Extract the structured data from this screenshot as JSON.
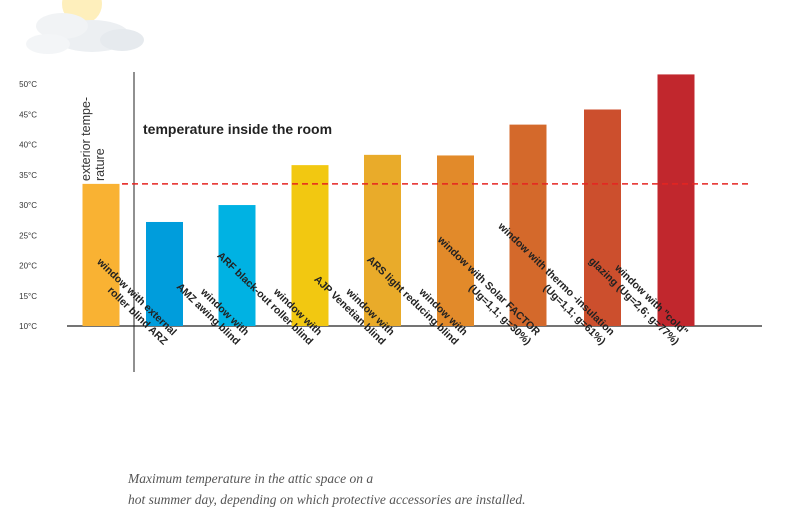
{
  "chart_data": {
    "type": "bar",
    "categories": [
      "exterior tempe-|rature",
      "window with external|roller blind ARZ",
      "window with|AMZ awing blind",
      "window with|ARF black-out roller blind",
      "window with|AJP Venetian blind",
      "window with|ARS light reducing blind",
      "window with Solar FACTOR|(Ug=1,1; g=30%)",
      "window with thermo -insulation|(Ug=1,1; g=61%)",
      "window with \"cold\"|glazing (Ug=2,6; g=77%)"
    ],
    "values": [
      33.5,
      27.2,
      30,
      36.6,
      38.3,
      38.2,
      43.3,
      45.8,
      51.6
    ],
    "colors": [
      "#f9b233",
      "#009ddc",
      "#00b2e3",
      "#f2c811",
      "#e9ab2a",
      "#e28a2a",
      "#d4692b",
      "#cc4f2d",
      "#c1272d"
    ],
    "ylim": [
      10,
      52
    ],
    "yticks": [
      "10°C",
      "15°C",
      "20°C",
      "25°C",
      "30°C",
      "35°C",
      "40°C",
      "45°C",
      "50°C"
    ],
    "ytick_values": [
      10,
      15,
      20,
      25,
      30,
      35,
      40,
      45,
      50
    ],
    "reference_line": {
      "value": 33.5,
      "color": "#e52421",
      "style": "dashed"
    },
    "annotation": "temperature inside the room",
    "grid": false
  },
  "caption": {
    "line1": "Maximum temperature in the attic space on a",
    "line2": "hot summer day, depending on which protective accessories are installed."
  }
}
